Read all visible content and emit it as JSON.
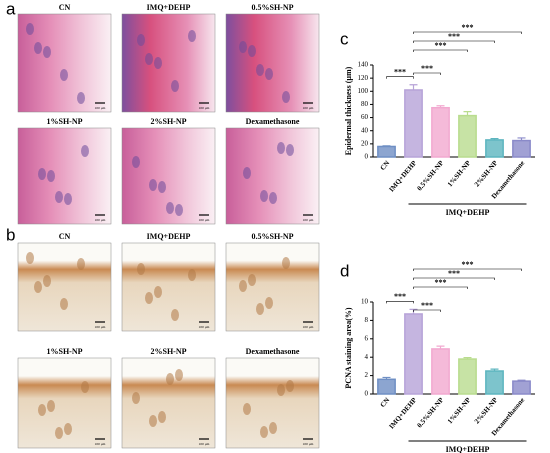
{
  "panels": [
    {
      "letter": "a",
      "labels": [
        "CN",
        "IMQ+DEHP",
        "0.5%SH-NP",
        "1%SH-NP",
        "2%SH-NP",
        "Dexamethasone"
      ]
    },
    {
      "letter": "b",
      "labels": [
        "CN",
        "IMQ+DEHP",
        "0.5%SH-NP",
        "1%SH-NP",
        "2%SH-NP",
        "Dexamethasone"
      ]
    }
  ],
  "scale_bar": "100 μm",
  "chart_data": [
    {
      "type": "bar",
      "letter": "c",
      "ylabel": "Epidermal thickness (μm)",
      "categories": [
        "CN",
        "IMQ+DEHP",
        "0.5%SH-NP",
        "1%SH-NP",
        "2%SH-NP",
        "Dexamethasone"
      ],
      "values": [
        16,
        102,
        75,
        63,
        26,
        25
      ],
      "errors": [
        1,
        8,
        3,
        6,
        2,
        4
      ],
      "colors": [
        "#6f8fc4",
        "#b7a3d8",
        "#f2a9d0",
        "#b9dc8e",
        "#5db5bf",
        "#8a8ac9"
      ],
      "ylim": [
        0,
        140
      ],
      "yticks": [
        0,
        20,
        40,
        60,
        80,
        100,
        120,
        140
      ],
      "significance": [
        "***",
        "***",
        "***",
        "***",
        "***"
      ],
      "group_label": "IMQ+DEHP"
    },
    {
      "type": "bar",
      "letter": "d",
      "ylabel": "PCNA staining area(%)",
      "categories": [
        "CN",
        "IMQ+DEHP",
        "0.5%SH-NP",
        "1%SH-NP",
        "2%SH-NP",
        "Dexamethasone"
      ],
      "values": [
        1.6,
        8.7,
        4.9,
        3.8,
        2.5,
        1.4
      ],
      "errors": [
        0.2,
        0.5,
        0.3,
        0.15,
        0.2,
        0.1
      ],
      "colors": [
        "#6f8fc4",
        "#b7a3d8",
        "#f2a9d0",
        "#b9dc8e",
        "#5db5bf",
        "#8a8ac9"
      ],
      "ylim": [
        0,
        10
      ],
      "yticks": [
        0,
        2,
        4,
        6,
        8,
        10
      ],
      "significance": [
        "***",
        "***",
        "***",
        "***",
        "***"
      ],
      "group_label": "IMQ+DEHP"
    }
  ]
}
